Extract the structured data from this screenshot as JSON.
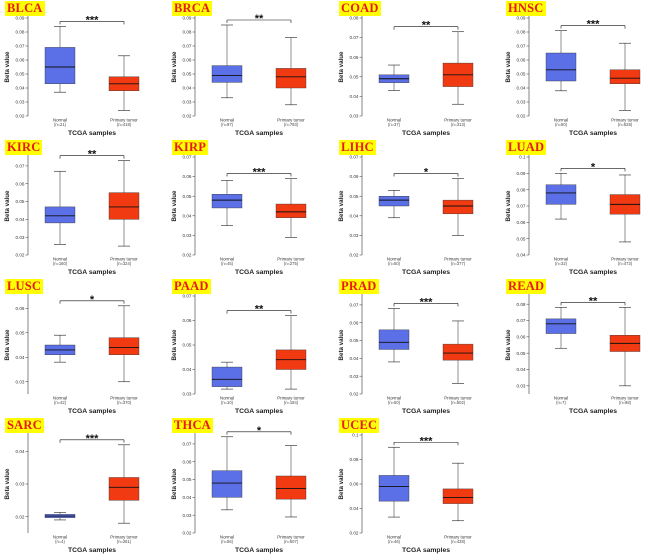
{
  "colors": {
    "normal": "#5b6fe6",
    "tumor": "#f23a12",
    "label_bg": "#ffff00",
    "label_text": "#e8191a"
  },
  "chart_data": [
    {
      "type": "boxplot",
      "title": "BLCA",
      "xlabel": "TCGA samples",
      "ylabel": "Beta value",
      "yticks": [
        "0.02",
        "0.03",
        "0.04",
        "0.05",
        "0.06",
        "0.07",
        "0.08",
        "0.09"
      ],
      "ylim": [
        0.02,
        0.09
      ],
      "significance": "***",
      "categories": [
        {
          "name": "Normal",
          "n_label": "(n=21)",
          "min": 0.037,
          "q1": 0.043,
          "median": 0.055,
          "q3": 0.069,
          "max": 0.084
        },
        {
          "name": "Primary tumor",
          "n_label": "(n=418)",
          "min": 0.024,
          "q1": 0.038,
          "median": 0.043,
          "q3": 0.048,
          "max": 0.063
        }
      ]
    },
    {
      "type": "boxplot",
      "title": "BRCA",
      "xlabel": "TCGA samples",
      "ylabel": "Beta value",
      "yticks": [
        "0.02",
        "0.03",
        "0.04",
        "0.05",
        "0.06",
        "0.07",
        "0.08",
        "0.09"
      ],
      "ylim": [
        0.02,
        0.09
      ],
      "significance": "**",
      "categories": [
        {
          "name": "Normal",
          "n_label": "(n=97)",
          "min": 0.033,
          "q1": 0.044,
          "median": 0.049,
          "q3": 0.056,
          "max": 0.085
        },
        {
          "name": "Primary tumor",
          "n_label": "(n=793)",
          "min": 0.028,
          "q1": 0.04,
          "median": 0.048,
          "q3": 0.054,
          "max": 0.076
        }
      ]
    },
    {
      "type": "boxplot",
      "title": "COAD",
      "xlabel": "TCGA samples",
      "ylabel": "Beta value",
      "yticks": [
        "0.03",
        "0.04",
        "0.05",
        "0.06",
        "0.07",
        "0.08"
      ],
      "ylim": [
        0.03,
        0.08
      ],
      "significance": "**",
      "categories": [
        {
          "name": "Normal",
          "n_label": "(n=37)",
          "min": 0.043,
          "q1": 0.047,
          "median": 0.049,
          "q3": 0.051,
          "max": 0.056
        },
        {
          "name": "Primary tumor",
          "n_label": "(n=313)",
          "min": 0.036,
          "q1": 0.045,
          "median": 0.051,
          "q3": 0.057,
          "max": 0.073
        }
      ]
    },
    {
      "type": "boxplot",
      "title": "HNSC",
      "xlabel": "TCGA samples",
      "ylabel": "Beta value",
      "yticks": [
        "0.02",
        "0.03",
        "0.04",
        "0.05",
        "0.06",
        "0.07",
        "0.08",
        "0.09"
      ],
      "ylim": [
        0.02,
        0.09
      ],
      "significance": "***",
      "categories": [
        {
          "name": "Normal",
          "n_label": "(n=50)",
          "min": 0.038,
          "q1": 0.045,
          "median": 0.053,
          "q3": 0.065,
          "max": 0.081
        },
        {
          "name": "Primary tumor",
          "n_label": "(n=528)",
          "min": 0.024,
          "q1": 0.043,
          "median": 0.047,
          "q3": 0.053,
          "max": 0.072
        }
      ]
    },
    {
      "type": "boxplot",
      "title": "KIRC",
      "xlabel": "TCGA samples",
      "ylabel": "Beta value",
      "yticks": [
        "0.02",
        "0.03",
        "0.04",
        "0.05",
        "0.06",
        "0.07"
      ],
      "ylim": [
        0.02,
        0.075
      ],
      "significance": "**",
      "categories": [
        {
          "name": "Normal",
          "n_label": "(n=160)",
          "min": 0.026,
          "q1": 0.038,
          "median": 0.042,
          "q3": 0.047,
          "max": 0.067
        },
        {
          "name": "Primary tumor",
          "n_label": "(n=324)",
          "min": 0.025,
          "q1": 0.04,
          "median": 0.047,
          "q3": 0.055,
          "max": 0.073
        }
      ]
    },
    {
      "type": "boxplot",
      "title": "KIRP",
      "xlabel": "TCGA samples",
      "ylabel": "Beta value",
      "yticks": [
        "0.02",
        "0.03",
        "0.04",
        "0.05",
        "0.06",
        "0.07"
      ],
      "ylim": [
        0.02,
        0.07
      ],
      "significance": "***",
      "categories": [
        {
          "name": "Normal",
          "n_label": "(n=45)",
          "min": 0.035,
          "q1": 0.044,
          "median": 0.048,
          "q3": 0.051,
          "max": 0.058
        },
        {
          "name": "Primary tumor",
          "n_label": "(n=275)",
          "min": 0.029,
          "q1": 0.039,
          "median": 0.042,
          "q3": 0.046,
          "max": 0.059
        }
      ]
    },
    {
      "type": "boxplot",
      "title": "LIHC",
      "xlabel": "TCGA samples",
      "ylabel": "Beta value",
      "yticks": [
        "0.02",
        "0.03",
        "0.04",
        "0.05",
        "0.06",
        "0.07"
      ],
      "ylim": [
        0.02,
        0.07
      ],
      "significance": "*",
      "categories": [
        {
          "name": "Normal",
          "n_label": "(n=50)",
          "min": 0.039,
          "q1": 0.045,
          "median": 0.048,
          "q3": 0.05,
          "max": 0.053
        },
        {
          "name": "Primary tumor",
          "n_label": "(n=377)",
          "min": 0.03,
          "q1": 0.041,
          "median": 0.045,
          "q3": 0.048,
          "max": 0.059
        }
      ]
    },
    {
      "type": "boxplot",
      "title": "LUAD",
      "xlabel": "TCGA samples",
      "ylabel": "Beta value",
      "yticks": [
        "0.04",
        "0.05",
        "0.06",
        "0.07",
        "0.08",
        "0.09",
        "0.1"
      ],
      "ylim": [
        0.04,
        0.1
      ],
      "significance": "*",
      "categories": [
        {
          "name": "Normal",
          "n_label": "(n=32)",
          "min": 0.062,
          "q1": 0.071,
          "median": 0.078,
          "q3": 0.083,
          "max": 0.09
        },
        {
          "name": "Primary tumor",
          "n_label": "(n=473)",
          "min": 0.048,
          "q1": 0.065,
          "median": 0.071,
          "q3": 0.077,
          "max": 0.089
        }
      ]
    },
    {
      "type": "boxplot",
      "title": "LUSC",
      "xlabel": "TCGA samples",
      "ylabel": "Beta value",
      "yticks": [
        "0.03",
        "0.04",
        "0.05",
        "0.06"
      ],
      "ylim": [
        0.025,
        0.065
      ],
      "significance": "*",
      "categories": [
        {
          "name": "Normal",
          "n_label": "(n=42)",
          "min": 0.038,
          "q1": 0.041,
          "median": 0.043,
          "q3": 0.045,
          "max": 0.049
        },
        {
          "name": "Primary tumor",
          "n_label": "(n=370)",
          "min": 0.03,
          "q1": 0.041,
          "median": 0.044,
          "q3": 0.048,
          "max": 0.061
        }
      ]
    },
    {
      "type": "boxplot",
      "title": "PAAD",
      "xlabel": "TCGA samples",
      "ylabel": "Beta value",
      "yticks": [
        "0.03",
        "0.04",
        "0.05",
        "0.06",
        "0.07"
      ],
      "ylim": [
        0.03,
        0.07
      ],
      "significance": "**",
      "categories": [
        {
          "name": "Normal",
          "n_label": "(n=10)",
          "min": 0.032,
          "q1": 0.033,
          "median": 0.036,
          "q3": 0.041,
          "max": 0.043
        },
        {
          "name": "Primary tumor",
          "n_label": "(n=184)",
          "min": 0.032,
          "q1": 0.04,
          "median": 0.044,
          "q3": 0.048,
          "max": 0.062
        }
      ]
    },
    {
      "type": "boxplot",
      "title": "PRAD",
      "xlabel": "TCGA samples",
      "ylabel": "Beta value",
      "yticks": [
        "0.02",
        "0.03",
        "0.04",
        "0.05",
        "0.06",
        "0.07"
      ],
      "ylim": [
        0.02,
        0.075
      ],
      "significance": "***",
      "categories": [
        {
          "name": "Normal",
          "n_label": "(n=50)",
          "min": 0.038,
          "q1": 0.045,
          "median": 0.049,
          "q3": 0.056,
          "max": 0.068
        },
        {
          "name": "Primary tumor",
          "n_label": "(n=502)",
          "min": 0.026,
          "q1": 0.039,
          "median": 0.043,
          "q3": 0.048,
          "max": 0.061
        }
      ]
    },
    {
      "type": "boxplot",
      "title": "READ",
      "xlabel": "TCGA samples",
      "ylabel": "Beta value",
      "yticks": [
        "0.03",
        "0.04",
        "0.05",
        "0.06",
        "0.07",
        "0.08"
      ],
      "ylim": [
        0.025,
        0.085
      ],
      "significance": "**",
      "categories": [
        {
          "name": "Normal",
          "n_label": "(n=7)",
          "min": 0.053,
          "q1": 0.062,
          "median": 0.068,
          "q3": 0.071,
          "max": 0.078
        },
        {
          "name": "Primary tumor",
          "n_label": "(n=98)",
          "min": 0.03,
          "q1": 0.051,
          "median": 0.056,
          "q3": 0.061,
          "max": 0.078
        }
      ]
    },
    {
      "type": "boxplot",
      "title": "SARC",
      "xlabel": "TCGA samples",
      "ylabel": "Beta value",
      "yticks": [
        "0.02",
        "0.03",
        "0.04"
      ],
      "ylim": [
        0.015,
        0.045
      ],
      "significance": "***",
      "categories": [
        {
          "name": "Normal",
          "n_label": "(n=4)",
          "min": 0.019,
          "q1": 0.0197,
          "median": 0.0202,
          "q3": 0.0207,
          "max": 0.0213
        },
        {
          "name": "Primary tumor",
          "n_label": "(n=261)",
          "min": 0.018,
          "q1": 0.025,
          "median": 0.029,
          "q3": 0.032,
          "max": 0.042
        }
      ]
    },
    {
      "type": "boxplot",
      "title": "THCA",
      "xlabel": "TCGA samples",
      "ylabel": "Beta value",
      "yticks": [
        "0.02",
        "0.03",
        "0.04",
        "0.05",
        "0.06",
        "0.07"
      ],
      "ylim": [
        0.02,
        0.075
      ],
      "significance": "*",
      "categories": [
        {
          "name": "Normal",
          "n_label": "(n=56)",
          "min": 0.033,
          "q1": 0.04,
          "median": 0.048,
          "q3": 0.055,
          "max": 0.074
        },
        {
          "name": "Primary tumor",
          "n_label": "(n=507)",
          "min": 0.029,
          "q1": 0.039,
          "median": 0.045,
          "q3": 0.052,
          "max": 0.069
        }
      ]
    },
    {
      "type": "boxplot",
      "title": "UCEC",
      "xlabel": "TCGA samples",
      "ylabel": "Beta value",
      "yticks": [
        "0.02",
        "0.04",
        "0.06",
        "0.08",
        "0.1"
      ],
      "ylim": [
        0.02,
        0.1
      ],
      "significance": "***",
      "categories": [
        {
          "name": "Normal",
          "n_label": "(n=46)",
          "min": 0.033,
          "q1": 0.046,
          "median": 0.058,
          "q3": 0.067,
          "max": 0.09
        },
        {
          "name": "Primary tumor",
          "n_label": "(n=438)",
          "min": 0.03,
          "q1": 0.044,
          "median": 0.049,
          "q3": 0.056,
          "max": 0.077
        }
      ]
    }
  ]
}
